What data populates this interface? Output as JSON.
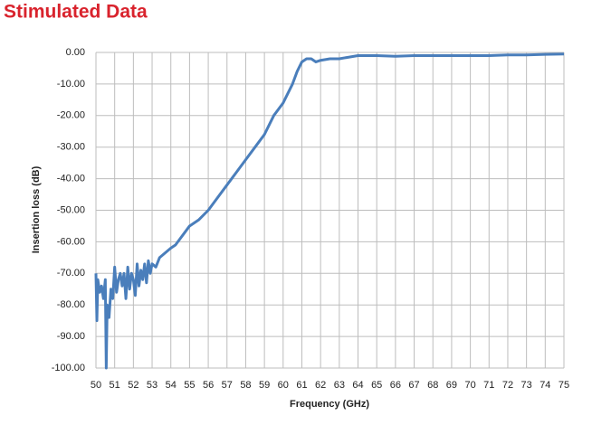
{
  "chart_data": {
    "type": "line",
    "title": "Stimulated Data",
    "xlabel": "Frequency (GHz)",
    "ylabel": "Insertion loss (dB)",
    "x": [
      50.0,
      50.05,
      50.1,
      50.2,
      50.3,
      50.4,
      50.5,
      50.55,
      50.6,
      50.7,
      50.8,
      50.9,
      51.0,
      51.1,
      51.2,
      51.3,
      51.4,
      51.5,
      51.6,
      51.7,
      51.8,
      51.9,
      52.0,
      52.1,
      52.2,
      52.3,
      52.4,
      52.5,
      52.6,
      52.7,
      52.8,
      52.9,
      53.0,
      53.2,
      53.4,
      53.6,
      53.8,
      54.0,
      54.25,
      54.5,
      54.75,
      55.0,
      55.5,
      56.0,
      56.5,
      57.0,
      57.5,
      58.0,
      58.5,
      59.0,
      59.5,
      60.0,
      60.5,
      60.75,
      61.0,
      61.25,
      61.5,
      61.75,
      62.0,
      62.5,
      63.0,
      63.5,
      64.0,
      65.0,
      66.0,
      67.0,
      68.0,
      69.0,
      70.0,
      71.0,
      72.0,
      73.0,
      74.0,
      75.0
    ],
    "values": [
      -70,
      -85,
      -72,
      -76,
      -74,
      -78,
      -72,
      -100,
      -80,
      -84,
      -75,
      -78,
      -68,
      -76,
      -72,
      -70,
      -74,
      -70,
      -78,
      -68,
      -75,
      -70,
      -72,
      -77,
      -67,
      -74,
      -69,
      -72,
      -67,
      -73,
      -66,
      -70,
      -67,
      -68,
      -65,
      -64,
      -63,
      -62,
      -61,
      -59,
      -57,
      -55,
      -53,
      -50,
      -46,
      -42,
      -38,
      -34,
      -30,
      -26,
      -20,
      -16,
      -10,
      -6,
      -3,
      -2,
      -2,
      -3,
      -2.5,
      -2,
      -2,
      -1.5,
      -1,
      -1,
      -1.2,
      -1,
      -1,
      -1,
      -1,
      -1,
      -0.8,
      -0.8,
      -0.6,
      -0.5
    ],
    "color": "#4a7ebb",
    "xlim": [
      50,
      75
    ],
    "ylim": [
      -100,
      0
    ],
    "xticks": [
      50,
      51,
      52,
      53,
      54,
      55,
      56,
      57,
      58,
      59,
      60,
      61,
      62,
      63,
      64,
      65,
      66,
      67,
      68,
      69,
      70,
      71,
      72,
      73,
      74,
      75
    ],
    "yticks": [
      {
        "value": 0,
        "label": "0.00"
      },
      {
        "value": -10,
        "label": "-10.00"
      },
      {
        "value": -20,
        "label": "-20.00"
      },
      {
        "value": -30,
        "label": "-30.00"
      },
      {
        "value": -40,
        "label": "-40.00"
      },
      {
        "value": -50,
        "label": "-50.00"
      },
      {
        "value": -60,
        "label": "-60.00"
      },
      {
        "value": -70,
        "label": "-70.00"
      },
      {
        "value": -80,
        "label": "-80.00"
      },
      {
        "value": -90,
        "label": "-90.00"
      },
      {
        "value": -100,
        "label": "-100.00"
      }
    ],
    "grid": true
  }
}
